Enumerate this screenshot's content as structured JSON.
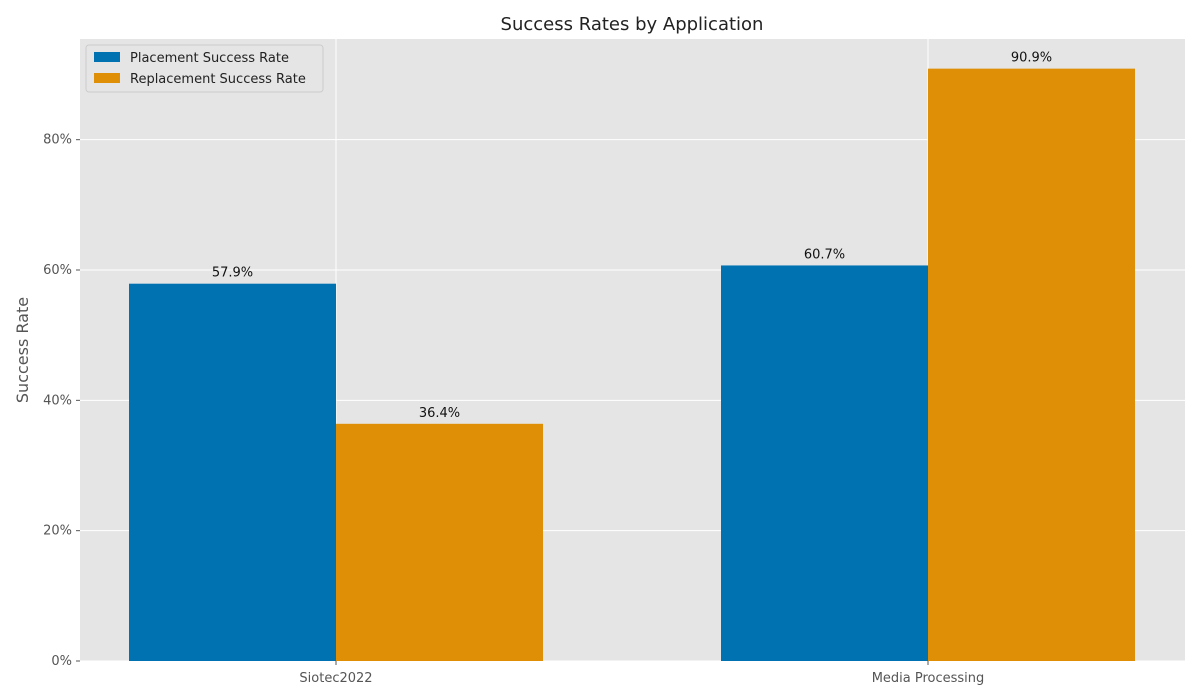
{
  "chart_data": {
    "type": "bar",
    "title": "Success Rates by Application",
    "xlabel": "",
    "ylabel": "Success Rate",
    "categories": [
      "Siotec2022",
      "Media Processing"
    ],
    "series": [
      {
        "name": "Placement Success Rate",
        "values": [
          57.9,
          60.7
        ],
        "color": "#0072b2"
      },
      {
        "name": "Replacement Success Rate",
        "values": [
          36.4,
          90.9
        ],
        "color": "#de8f05"
      }
    ],
    "ylim": [
      0,
      95.45
    ],
    "yticks": [
      0,
      20,
      40,
      60,
      80
    ],
    "ytick_labels": [
      "0%",
      "20%",
      "40%",
      "60%",
      "80%"
    ],
    "value_labels": [
      [
        "57.9%",
        "60.7%"
      ],
      [
        "36.4%",
        "90.9%"
      ]
    ],
    "grid": true,
    "legend_position": "top-left",
    "background_color": "#e5e5e5",
    "grid_color": "#ffffff"
  }
}
